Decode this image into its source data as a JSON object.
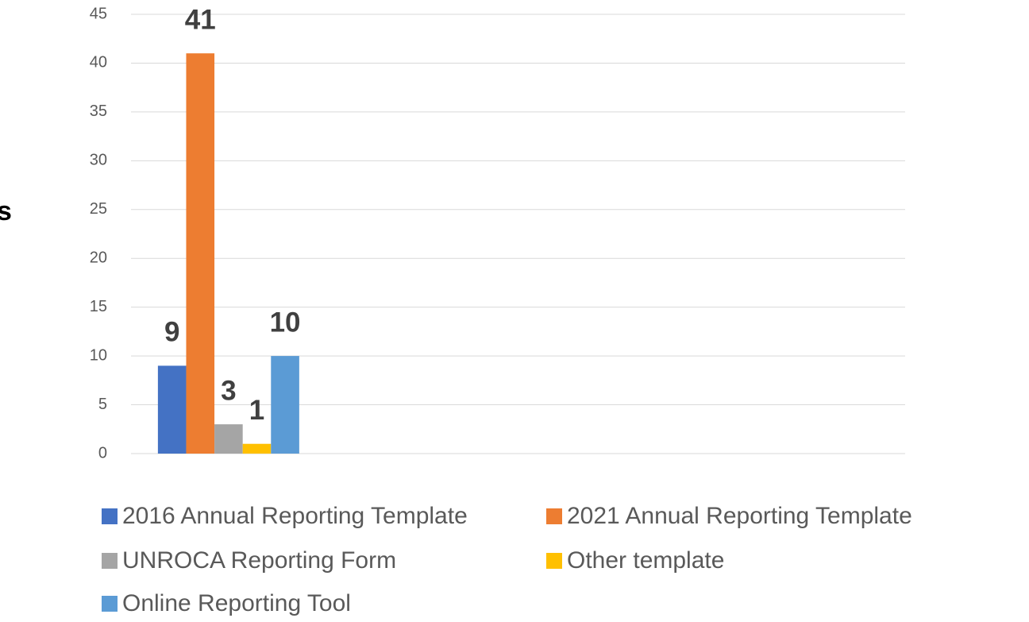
{
  "chart_data": {
    "type": "bar",
    "y_label": "s",
    "categories": [
      null,
      null,
      null,
      null
    ],
    "series": [
      {
        "name": "2016 Annual Reporting Template",
        "color": "#4472c4",
        "values": [
          9,
          null,
          null,
          null
        ]
      },
      {
        "name": "2021 Annual Reporting Template",
        "color": "#ed7d31",
        "values": [
          41,
          null,
          null,
          null
        ]
      },
      {
        "name": "UNROCA Reporting Form",
        "color": "#a5a5a5",
        "values": [
          3,
          null,
          null,
          null
        ]
      },
      {
        "name": "Other template",
        "color": "#ffc000",
        "values": [
          1,
          null,
          null,
          null
        ]
      },
      {
        "name": "Online Reporting Tool",
        "color": "#5b9bd5",
        "values": [
          10,
          null,
          null,
          null
        ]
      }
    ],
    "ylim": [
      0,
      45
    ],
    "yticks": [
      0,
      5,
      10,
      15,
      20,
      25,
      30,
      35,
      40,
      45
    ],
    "grid": true,
    "legend": "bottom"
  }
}
